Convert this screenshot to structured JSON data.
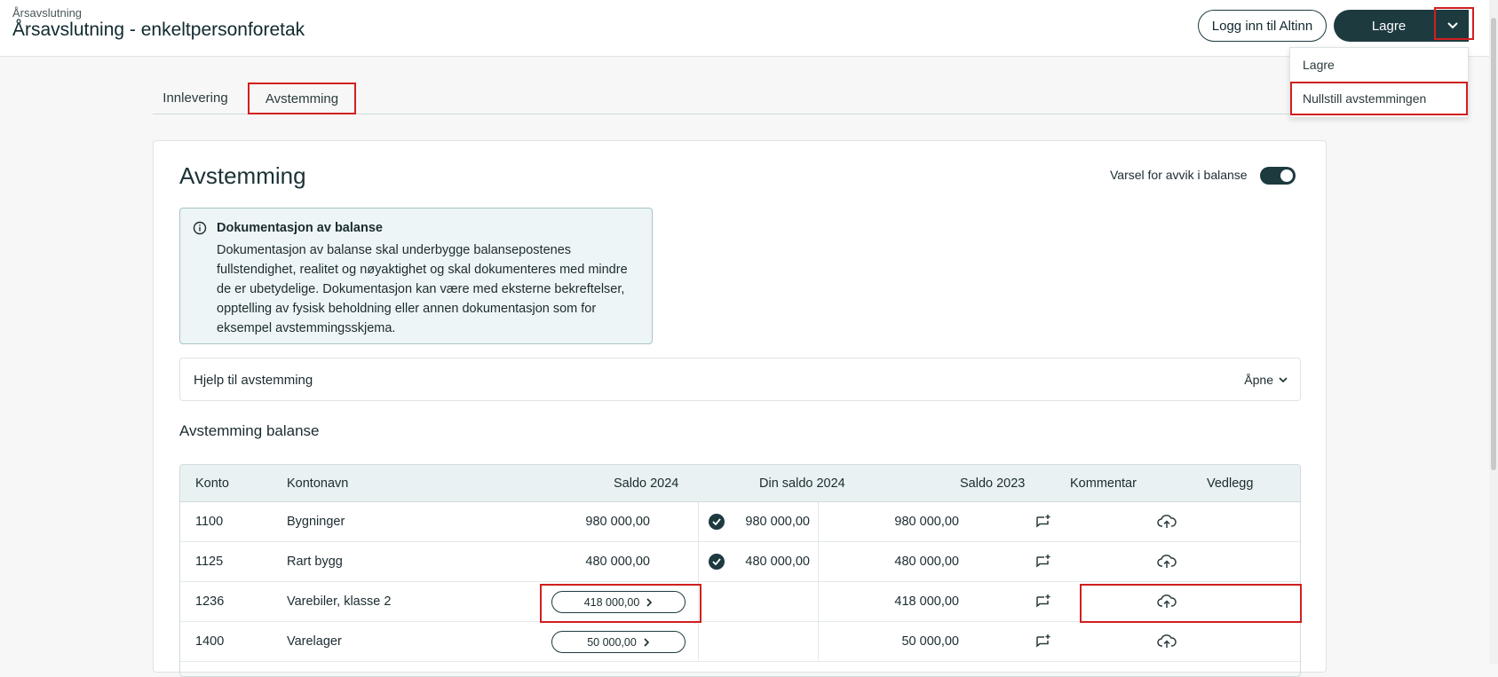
{
  "header": {
    "breadcrumb": "Årsavslutning",
    "title": "Årsavslutning - enkeltpersonforetak",
    "altinn_label": "Logg inn til Altinn",
    "save_label": "Lagre"
  },
  "dropdown": {
    "items": [
      "Lagre",
      "Nullstill avstemmingen"
    ]
  },
  "tabs": [
    "Innlevering",
    "Avstemming"
  ],
  "card": {
    "title": "Avstemming",
    "toggle_label": "Varsel for avvik i balanse",
    "info_title": "Dokumentasjon av balanse",
    "info_text": "Dokumentasjon av balanse skal underbygge balansepostenes fullstendighet, realitet og nøyaktighet og skal dokumenteres med mindre de er ubetydelige. Dokumentasjon kan være med eksterne bekreftelser, opptelling av fysisk beholdning eller annen dokumentasjon som for eksempel avstemmingsskjema.",
    "help_label": "Hjelp til avstemming",
    "help_open": "Åpne",
    "section_title": "Avstemming balanse"
  },
  "table": {
    "headers": {
      "konto": "Konto",
      "kontonavn": "Kontonavn",
      "saldo2024": "Saldo 2024",
      "din_saldo": "Din saldo 2024",
      "saldo2023": "Saldo 2023",
      "kommentar": "Kommentar",
      "vedlegg": "Vedlegg"
    },
    "rows": [
      {
        "konto": "1100",
        "navn": "Bygninger",
        "saldo2024": "980 000,00",
        "din_saldo": "980 000,00",
        "saldo2023": "980 000,00"
      },
      {
        "konto": "1125",
        "navn": "Rart bygg",
        "saldo2024": "480 000,00",
        "din_saldo": "480 000,00",
        "saldo2023": "480 000,00"
      },
      {
        "konto": "1236",
        "navn": "Varebiler, klasse 2",
        "saldo2024": "418 000,00",
        "din_saldo": "",
        "saldo2023": "418 000,00"
      },
      {
        "konto": "1400",
        "navn": "Varelager",
        "saldo2024": "50 000,00",
        "din_saldo": "",
        "saldo2023": "50 000,00"
      }
    ]
  }
}
